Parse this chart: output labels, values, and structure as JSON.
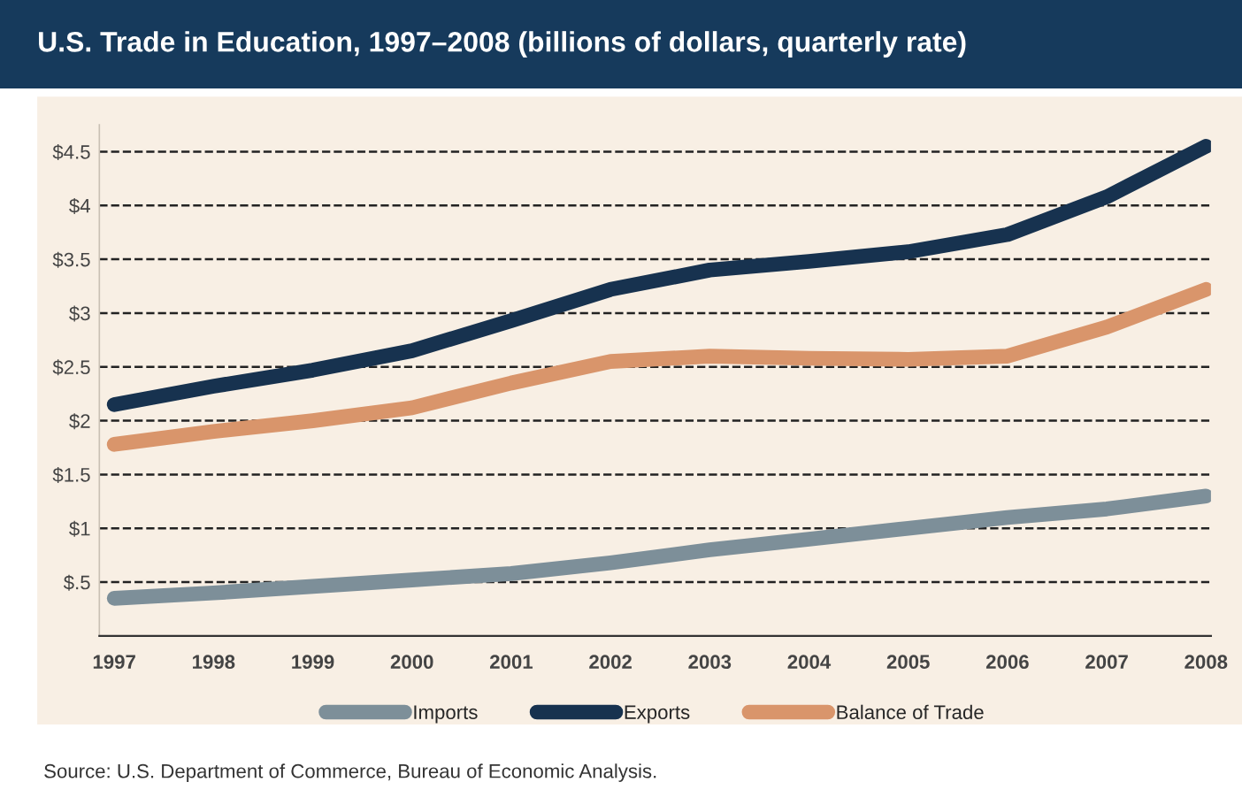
{
  "chart_data": {
    "type": "line",
    "title": "U.S. Trade in Education, 1997–2008 (billions of dollars, quarterly rate)",
    "categories": [
      "1997",
      "1998",
      "1999",
      "2000",
      "2001",
      "2002",
      "2003",
      "2004",
      "2005",
      "2006",
      "2007",
      "2008"
    ],
    "series": [
      {
        "name": "Imports",
        "color": "#7d8f99",
        "values": [
          0.35,
          0.4,
          0.46,
          0.52,
          0.58,
          0.68,
          0.8,
          0.9,
          1.0,
          1.1,
          1.18,
          1.3
        ]
      },
      {
        "name": "Exports",
        "color": "#17324f",
        "values": [
          2.15,
          2.32,
          2.47,
          2.65,
          2.93,
          3.22,
          3.4,
          3.48,
          3.57,
          3.73,
          4.08,
          4.55
        ]
      },
      {
        "name": "Balance of Trade",
        "color": "#d9956b",
        "values": [
          1.78,
          1.9,
          2.0,
          2.12,
          2.35,
          2.55,
          2.6,
          2.58,
          2.57,
          2.6,
          2.87,
          3.22
        ]
      }
    ],
    "ylim": [
      0,
      4.75
    ],
    "yticks": [
      {
        "value": 0.5,
        "label": "$.5"
      },
      {
        "value": 1,
        "label": "$1"
      },
      {
        "value": 1.5,
        "label": "$1.5"
      },
      {
        "value": 2,
        "label": "$2"
      },
      {
        "value": 2.5,
        "label": "$2.5"
      },
      {
        "value": 3,
        "label": "$3"
      },
      {
        "value": 3.5,
        "label": "$3.5"
      },
      {
        "value": 4,
        "label": "$4"
      },
      {
        "value": 4.5,
        "label": "$4.5"
      }
    ],
    "grid": "y",
    "legend": "bottom",
    "line_style": "solid",
    "marker": "none",
    "annotations": [
      "Source: U.S. Department of Commerce, Bureau of Economic Analysis."
    ]
  }
}
